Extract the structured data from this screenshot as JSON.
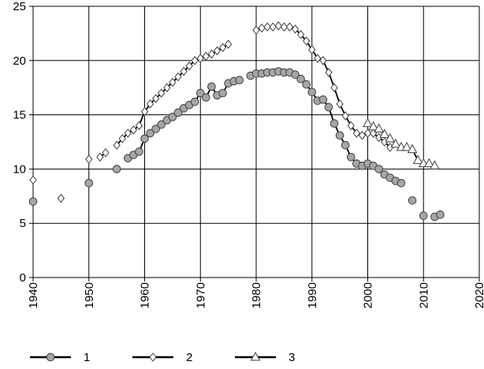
{
  "chart_data": {
    "type": "line",
    "xlim": [
      1940,
      2020
    ],
    "xticks": [
      1940,
      1950,
      1960,
      1970,
      1980,
      1990,
      2000,
      2010,
      2020
    ],
    "ylim": [
      0,
      25
    ],
    "yticks": [
      0,
      5,
      10,
      15,
      20,
      25
    ],
    "grid": true,
    "legend": "bottom",
    "series": [
      {
        "name": "1",
        "color": "#000000",
        "marker": "circle",
        "marker_fill": "#a6a6a6",
        "x": [
          1940,
          1941,
          1950,
          1951,
          1955,
          1956,
          1957,
          1958,
          1959,
          1960,
          1961,
          1962,
          1963,
          1964,
          1965,
          1966,
          1967,
          1968,
          1969,
          1970,
          1971,
          1972,
          1973,
          1974,
          1975,
          1976,
          1977,
          1978,
          1979,
          1980,
          1981,
          1982,
          1983,
          1984,
          1985,
          1986,
          1987,
          1988,
          1989,
          1990,
          1991,
          1992,
          1993,
          1994,
          1995,
          1996,
          1997,
          1998,
          1999,
          2000,
          2001,
          2002,
          2003,
          2004,
          2005,
          2006,
          2007,
          2008,
          2009,
          2010,
          2011,
          2012,
          2013
        ],
        "values": [
          7.0,
          null,
          8.7,
          null,
          10.0,
          null,
          11.0,
          11.3,
          11.6,
          12.8,
          13.3,
          13.7,
          14.1,
          14.5,
          14.8,
          15.2,
          15.6,
          15.9,
          16.2,
          17.0,
          16.6,
          17.6,
          16.8,
          17.0,
          17.9,
          18.1,
          18.2,
          null,
          18.6,
          18.8,
          18.8,
          18.9,
          18.9,
          19.0,
          18.9,
          18.9,
          18.7,
          18.3,
          17.8,
          17.1,
          16.3,
          16.4,
          15.7,
          14.2,
          13.1,
          12.2,
          11.1,
          10.5,
          10.3,
          10.5,
          10.3,
          10.0,
          9.5,
          9.2,
          8.9,
          8.7,
          null,
          7.1,
          null,
          5.7,
          null,
          5.6,
          5.8
        ]
      },
      {
        "name": "2",
        "color": "#000000",
        "marker": "diamond",
        "marker_fill": "#ffffff",
        "x": [
          1940,
          1941,
          1945,
          1946,
          1950,
          1951,
          1952,
          1953,
          1954,
          1955,
          1956,
          1957,
          1958,
          1959,
          1960,
          1961,
          1962,
          1963,
          1964,
          1965,
          1966,
          1967,
          1968,
          1969,
          1970,
          1971,
          1972,
          1973,
          1974,
          1975,
          1976,
          1980,
          1981,
          1982,
          1983,
          1984,
          1985,
          1986,
          1987,
          1988,
          1989,
          1990,
          1991,
          1992,
          1993,
          1994,
          1995,
          1996,
          1997,
          1998,
          1999,
          2000,
          2001,
          2002,
          2003,
          2004
        ],
        "values": [
          9.0,
          null,
          7.3,
          null,
          10.9,
          null,
          11.1,
          11.5,
          null,
          12.2,
          12.8,
          13.3,
          13.6,
          14.0,
          15.3,
          16.0,
          16.5,
          17.0,
          17.5,
          18.0,
          18.5,
          19.0,
          19.5,
          20.0,
          20.2,
          20.4,
          20.6,
          20.9,
          21.2,
          21.5,
          null,
          22.8,
          23.0,
          23.1,
          23.1,
          23.2,
          23.1,
          23.1,
          22.9,
          22.4,
          21.8,
          21.0,
          20.2,
          20.0,
          18.9,
          17.5,
          16.0,
          14.9,
          14.0,
          13.3,
          13.1,
          13.3,
          13.3,
          12.9,
          12.5,
          12.0
        ]
      },
      {
        "name": "3",
        "color": "#000000",
        "marker": "triangle",
        "marker_fill": "#ffffff",
        "x": [
          2000,
          2001,
          2002,
          2003,
          2004,
          2005,
          2006,
          2007,
          2008,
          2009,
          2010,
          2011,
          2012
        ],
        "values": [
          14.2,
          13.9,
          13.7,
          13.2,
          12.8,
          12.3,
          12.0,
          12.0,
          11.8,
          10.8,
          10.5,
          10.5,
          10.3
        ]
      }
    ]
  }
}
